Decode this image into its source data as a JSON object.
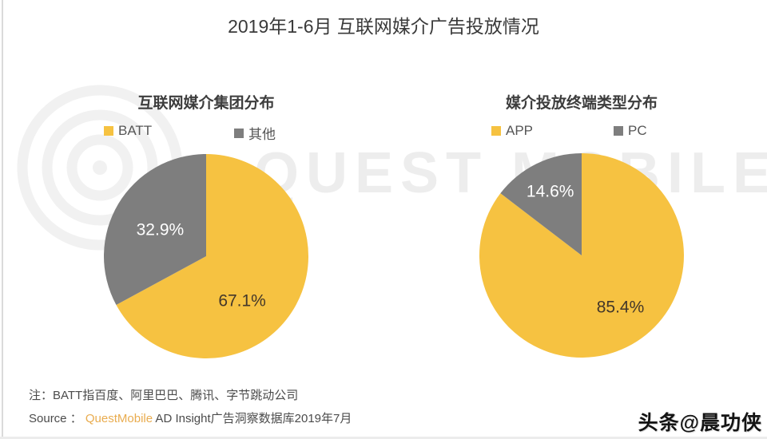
{
  "page": {
    "title": "2019年1-6月 互联网媒介广告投放情况",
    "note": "注：BATT指百度、阿里巴巴、腾讯、字节跳动公司",
    "source": {
      "prefix": "Source ： ",
      "brand": "QuestMobile",
      "suffix": " AD Insight广告洞察数据库2019年7月"
    },
    "watermark": {
      "logo_text": "QUEST MOBILE",
      "byline": "头条@晨功侠"
    }
  },
  "colors": {
    "primary_yellow": "#F6C241",
    "slice_gray": "#7E7E7E",
    "brand_orange": "#E9AC4F",
    "watermark_gray": "#EDEDED"
  },
  "chart_data": [
    {
      "type": "pie",
      "title": "互联网媒介集团分布",
      "labels": [
        "BATT",
        "其他"
      ],
      "values": [
        67.1,
        32.9
      ],
      "pct_labels": [
        "67.1%",
        "32.9%"
      ],
      "colors": [
        "#F6C241",
        "#7E7E7E"
      ],
      "label_colors": [
        "#43372a",
        "#ffffff"
      ],
      "label_r": [
        0.56,
        0.52
      ],
      "label_angles": [
        141,
        300
      ],
      "start_angle": 0,
      "direction": "clockwise",
      "legend_position": "top"
    },
    {
      "type": "pie",
      "title": "媒介投放终端类型分布",
      "labels": [
        "APP",
        "PC"
      ],
      "values": [
        85.4,
        14.6
      ],
      "pct_labels": [
        "85.4%",
        "14.6%"
      ],
      "colors": [
        "#F6C241",
        "#7E7E7E"
      ],
      "label_colors": [
        "#43372a",
        "#ffffff"
      ],
      "label_r": [
        0.63,
        0.7
      ],
      "label_angles": [
        143,
        334
      ],
      "start_angle": 0,
      "direction": "clockwise",
      "legend_position": "top"
    }
  ]
}
